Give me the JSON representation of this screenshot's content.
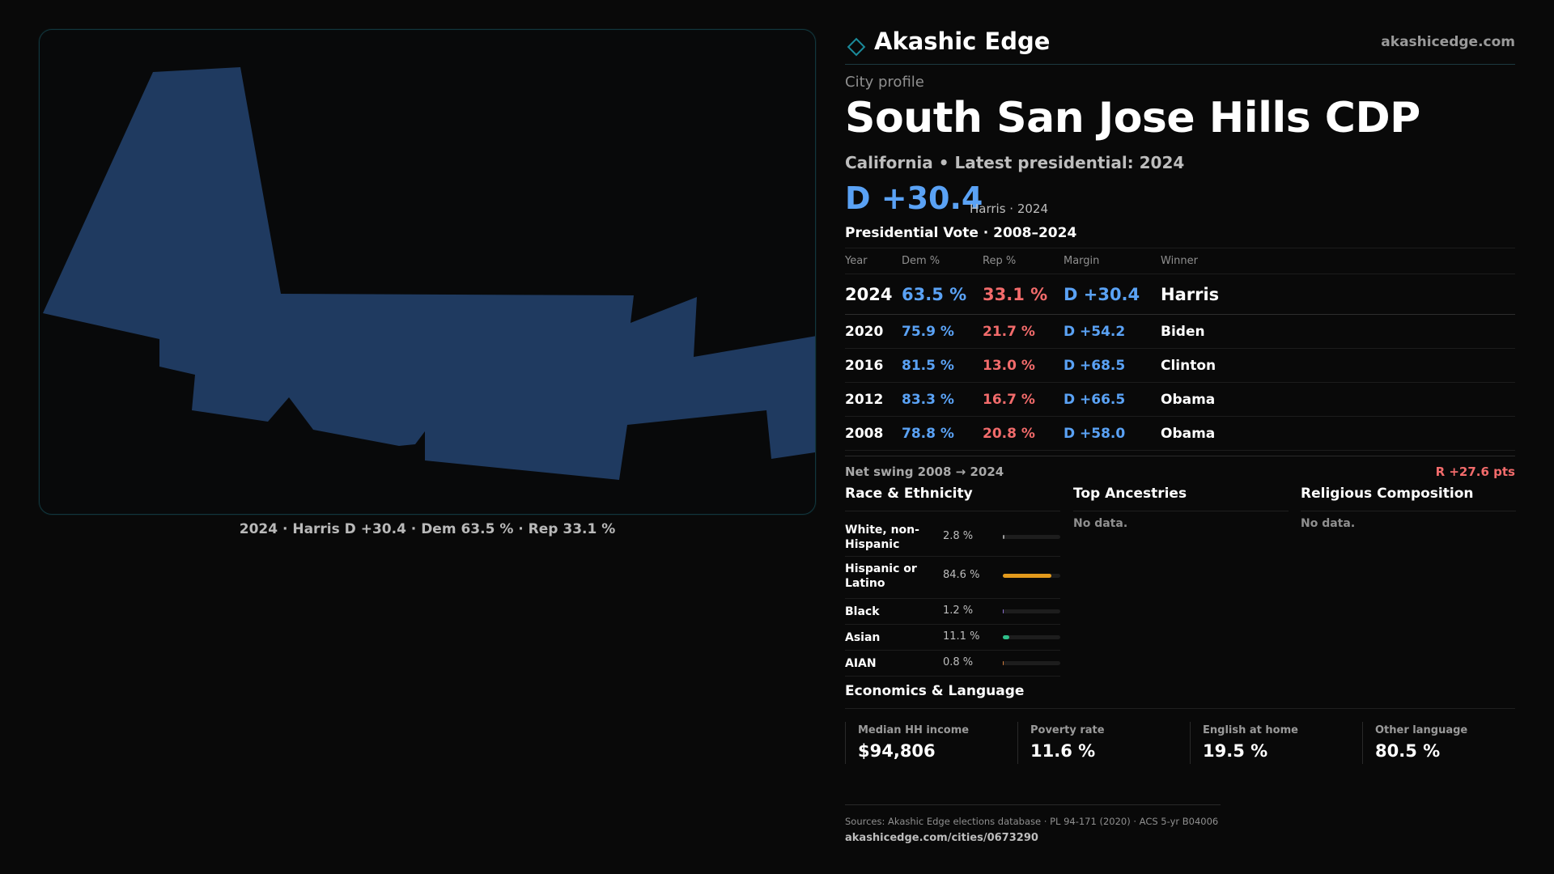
{
  "map": {
    "caption": "2024 · Harris D +30.4 · Dem 63.5 % · Rep 33.1 %",
    "fill_color": "#1f3a60"
  },
  "brand": {
    "name": "Akashic Edge",
    "url": "akashicedge.com",
    "icon": "diamond-outline-icon",
    "accent": "#1b8a9a"
  },
  "profile": {
    "eyebrow": "City profile",
    "title": "South San Jose Hills CDP",
    "subtitle": "California • Latest presidential: 2024",
    "headline_margin": "D +30.4",
    "headline_note": "Harris · 2024"
  },
  "presidential": {
    "title": "Presidential Vote · 2008–2024",
    "columns": [
      "Year",
      "Dem %",
      "Rep %",
      "Margin",
      "Winner"
    ],
    "rows": [
      {
        "year": "2024",
        "dem": "63.5 %",
        "rep": "33.1 %",
        "margin": "D +30.4",
        "winner": "Harris"
      },
      {
        "year": "2020",
        "dem": "75.9 %",
        "rep": "21.7 %",
        "margin": "D +54.2",
        "winner": "Biden"
      },
      {
        "year": "2016",
        "dem": "81.5 %",
        "rep": "13.0 %",
        "margin": "D +68.5",
        "winner": "Clinton"
      },
      {
        "year": "2012",
        "dem": "83.3 %",
        "rep": "16.7 %",
        "margin": "D +66.5",
        "winner": "Obama"
      },
      {
        "year": "2008",
        "dem": "78.8 %",
        "rep": "20.8 %",
        "margin": "D +58.0",
        "winner": "Obama"
      }
    ],
    "swing_label": "Net swing 2008 → 2024",
    "swing_value": "R +27.6 pts"
  },
  "race": {
    "title": "Race & Ethnicity",
    "rows": [
      {
        "label": "White, non-Hispanic",
        "value": "2.8 %",
        "share": 0.028,
        "color": "#9a9a9a"
      },
      {
        "label": "Hispanic or Latino",
        "value": "84.6 %",
        "share": 0.846,
        "color": "#e39a1c"
      },
      {
        "label": "Black",
        "value": "1.2 %",
        "share": 0.012,
        "color": "#8a6fd0"
      },
      {
        "label": "Asian",
        "value": "11.1 %",
        "share": 0.111,
        "color": "#2fbf8a"
      },
      {
        "label": "AIAN",
        "value": "0.8 %",
        "share": 0.008,
        "color": "#d07a3a"
      }
    ]
  },
  "ancestries": {
    "title": "Top Ancestries",
    "empty": "No data."
  },
  "religion": {
    "title": "Religious Composition",
    "empty": "No data."
  },
  "economics": {
    "title": "Economics & Language",
    "stats": [
      {
        "label": "Median HH income",
        "value": "$94,806"
      },
      {
        "label": "Poverty rate",
        "value": "11.6 %"
      },
      {
        "label": "English at home",
        "value": "19.5 %"
      },
      {
        "label": "Other language",
        "value": "80.5 %"
      }
    ]
  },
  "footer": {
    "sources": "Sources: Akashic Edge elections database · PL 94-171 (2020) · ACS 5-yr B04006",
    "url": "akashicedge.com/cities/0673290"
  }
}
